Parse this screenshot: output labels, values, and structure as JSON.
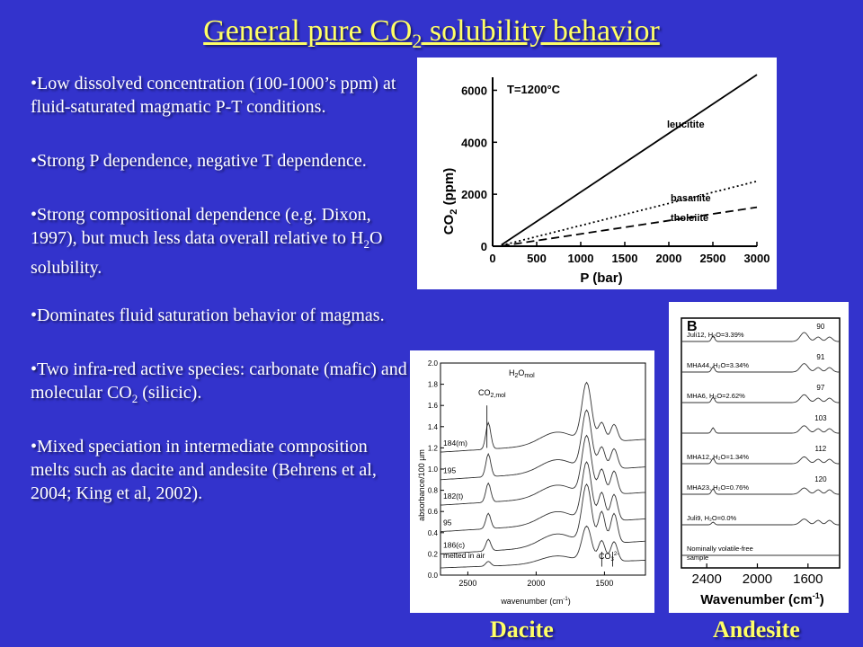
{
  "title": {
    "pre": "General pure CO",
    "sub": "2",
    "post": " solubility behavior"
  },
  "bullets": [
    {
      "pre": "Low dissolved concentration (100-1000’s ppm) at fluid-saturated magmatic P-T conditions.",
      "sub": "",
      "post": ""
    },
    {
      "pre": "Strong P dependence, negative T dependence.",
      "sub": "",
      "post": ""
    },
    {
      "pre": "Strong compositional dependence (e.g. Dixon, 1997), but much less data overall relative to H",
      "sub": "2",
      "post": "O solubility."
    },
    {
      "pre": "Dominates fluid saturation behavior of magmas.",
      "sub": "",
      "post": ""
    },
    {
      "pre": "Two infra-red active species:  carbonate (mafic)  and molecular CO",
      "sub": "2",
      "post": " (silicic)."
    },
    {
      "pre": "Mixed speciation in intermediate composition melts such as dacite and andesite (Behrens et al, 2004; King et al, 2002).",
      "sub": "",
      "post": ""
    }
  ],
  "bullet_char": "•",
  "captions": {
    "dacite": "Dacite",
    "andesite": "Andesite"
  },
  "chart_data": [
    {
      "type": "line",
      "annotation": "T=1200°C",
      "xlabel": "P (bar)",
      "ylabel_pre": "CO",
      "ylabel_sub": "2",
      "ylabel_post": " (ppm)",
      "xlim": [
        0,
        3000
      ],
      "ylim": [
        0,
        6500
      ],
      "xticks": [
        0,
        500,
        1000,
        1500,
        2000,
        2500,
        3000
      ],
      "yticks": [
        0,
        2000,
        4000,
        6000
      ],
      "series": [
        {
          "name": "leucitite",
          "style": "solid",
          "x": [
            100,
            3000
          ],
          "y": [
            50,
            6600
          ]
        },
        {
          "name": "basanite",
          "style": "dotted",
          "x": [
            100,
            3000
          ],
          "y": [
            30,
            2500
          ]
        },
        {
          "name": "tholeiite",
          "style": "dashed",
          "x": [
            100,
            3000
          ],
          "y": [
            10,
            1500
          ]
        }
      ]
    },
    {
      "type": "line",
      "xlabel_pre": "wavenumber (cm",
      "xlabel_sup": "-1",
      "xlabel_post": ")",
      "ylabel": "absorbance/100 µm",
      "xlim": [
        2700,
        1200
      ],
      "ylim": [
        0,
        2.0
      ],
      "xticks": [
        2500,
        2000,
        1500
      ],
      "yticks": [
        0.0,
        0.2,
        0.4,
        0.6,
        0.8,
        1.0,
        1.2,
        1.4,
        1.6,
        1.8,
        2.0
      ],
      "labels": {
        "h2o_pre": "H",
        "h2o_sub": "2",
        "h2o_mid": "O",
        "h2o_post": "mol",
        "co2mol_pre": "CO",
        "co2mol_sub": "2,mol",
        "co3_pre": "CO",
        "co3_sub": "3",
        "co3_sup": "2-"
      },
      "series": [
        {
          "name": "184(m)",
          "offset": 1.08
        },
        {
          "name": "195",
          "offset": 0.82
        },
        {
          "name": "182(t)",
          "offset": 0.58
        },
        {
          "name": "95",
          "offset": 0.33
        },
        {
          "name": "186(c)",
          "offset": 0.12
        },
        {
          "name": "melted in air",
          "offset": 0.02
        }
      ]
    },
    {
      "type": "line",
      "panel_label": "B",
      "xlabel_pre": "Wavenumber (cm",
      "xlabel_sup": "-1",
      "xlabel_post": ")",
      "xlim": [
        2600,
        1350
      ],
      "xticks": [
        2400,
        2000,
        1600
      ],
      "series": [
        {
          "name": "Juli12, H₂O=3.39%",
          "value": "90"
        },
        {
          "name": "MHA44, H₂O=3.34%",
          "value": "91"
        },
        {
          "name": "MHA6, H₂O=2.62%",
          "value": "97"
        },
        {
          "name": "",
          "value": "103"
        },
        {
          "name": "MHA12, H₂O=1.34%",
          "value": "112"
        },
        {
          "name": "MHA23, H₂O=0.76%",
          "value": "120"
        },
        {
          "name": "Juli9, H₂O=0.0%",
          "value": ""
        },
        {
          "name": "Nominally volatile-free sample",
          "value": ""
        }
      ]
    }
  ]
}
